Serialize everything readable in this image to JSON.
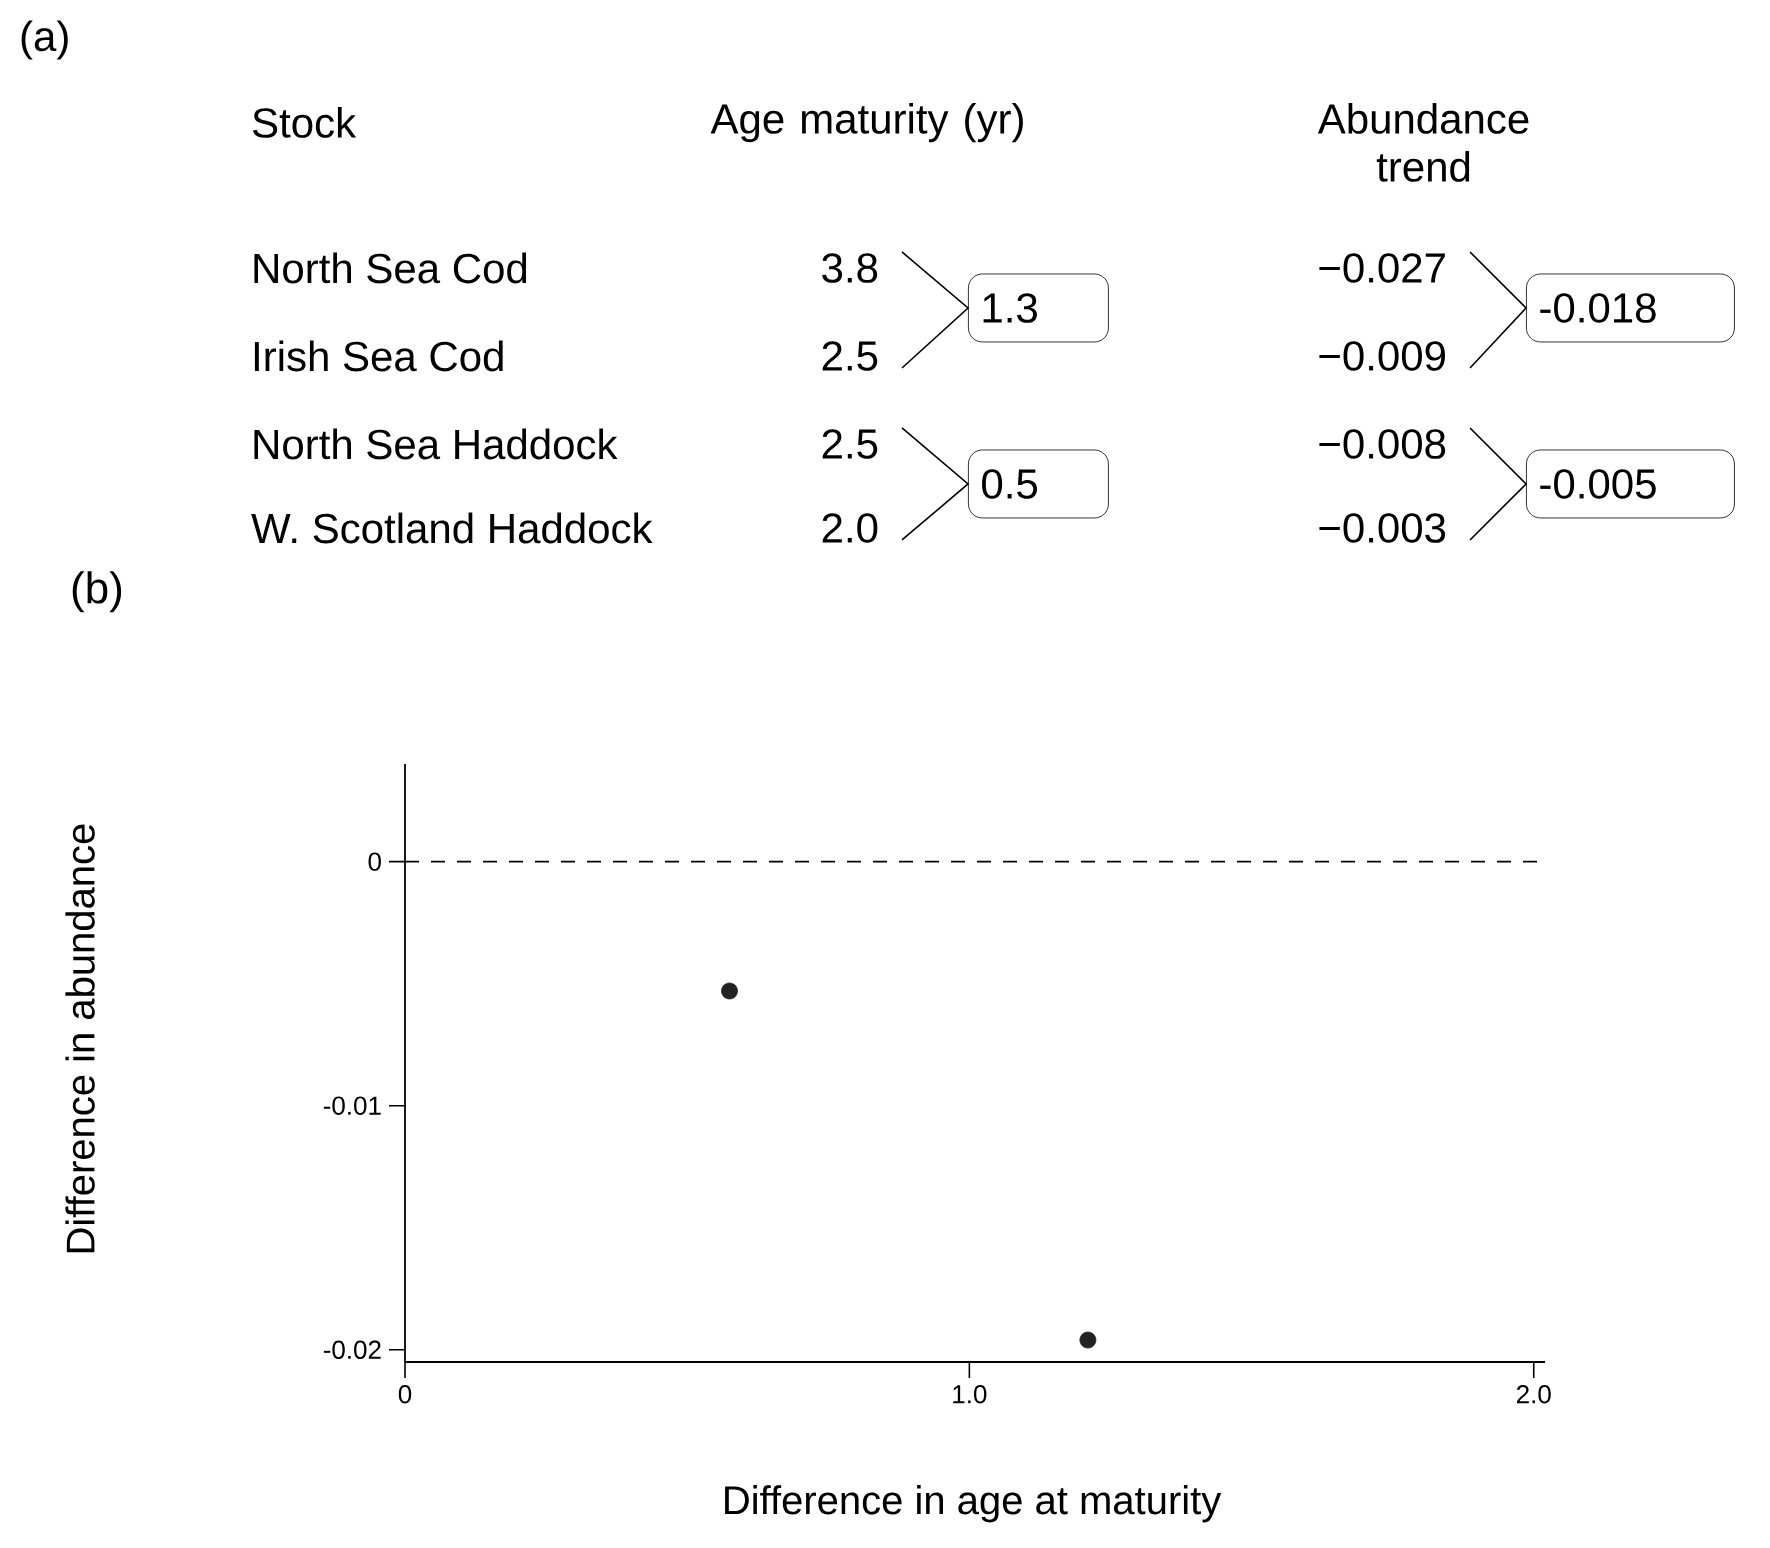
{
  "chart_data": [
    {
      "type": "other",
      "title": "(a)",
      "annotations": [
        "Stock",
        "Age maturity (yr)",
        "Abundance trend",
        "North Sea Cod",
        "Irish Sea Cod",
        "North Sea Haddock",
        "W. Scotland Haddock",
        "3.8",
        "2.5",
        "2.5",
        "2.0",
        "1.3",
        "0.5",
        "−0.027",
        "−0.009",
        "−0.008",
        "−0.003",
        "-0.018",
        "-0.005"
      ]
    },
    {
      "type": "scatter",
      "title": "(b)",
      "xlabel": "Difference in age at maturity",
      "ylabel": "Difference in abundance",
      "x": [
        0.575,
        1.21
      ],
      "values": [
        -0.0053,
        -0.0196
      ],
      "color": "#222222",
      "marker": "circle",
      "xlim": [
        0,
        2.02
      ],
      "ylim": [
        -0.0205,
        0.004
      ],
      "xticks": [
        0,
        {
          "value": 1,
          "label": "1.0"
        },
        {
          "value": 2,
          "label": "2.0"
        }
      ],
      "yticks": [
        0,
        -0.01,
        -0.02
      ],
      "ref_lines": [
        {
          "axis": "y",
          "value": 0,
          "line_style": "dashed"
        }
      ]
    }
  ]
}
